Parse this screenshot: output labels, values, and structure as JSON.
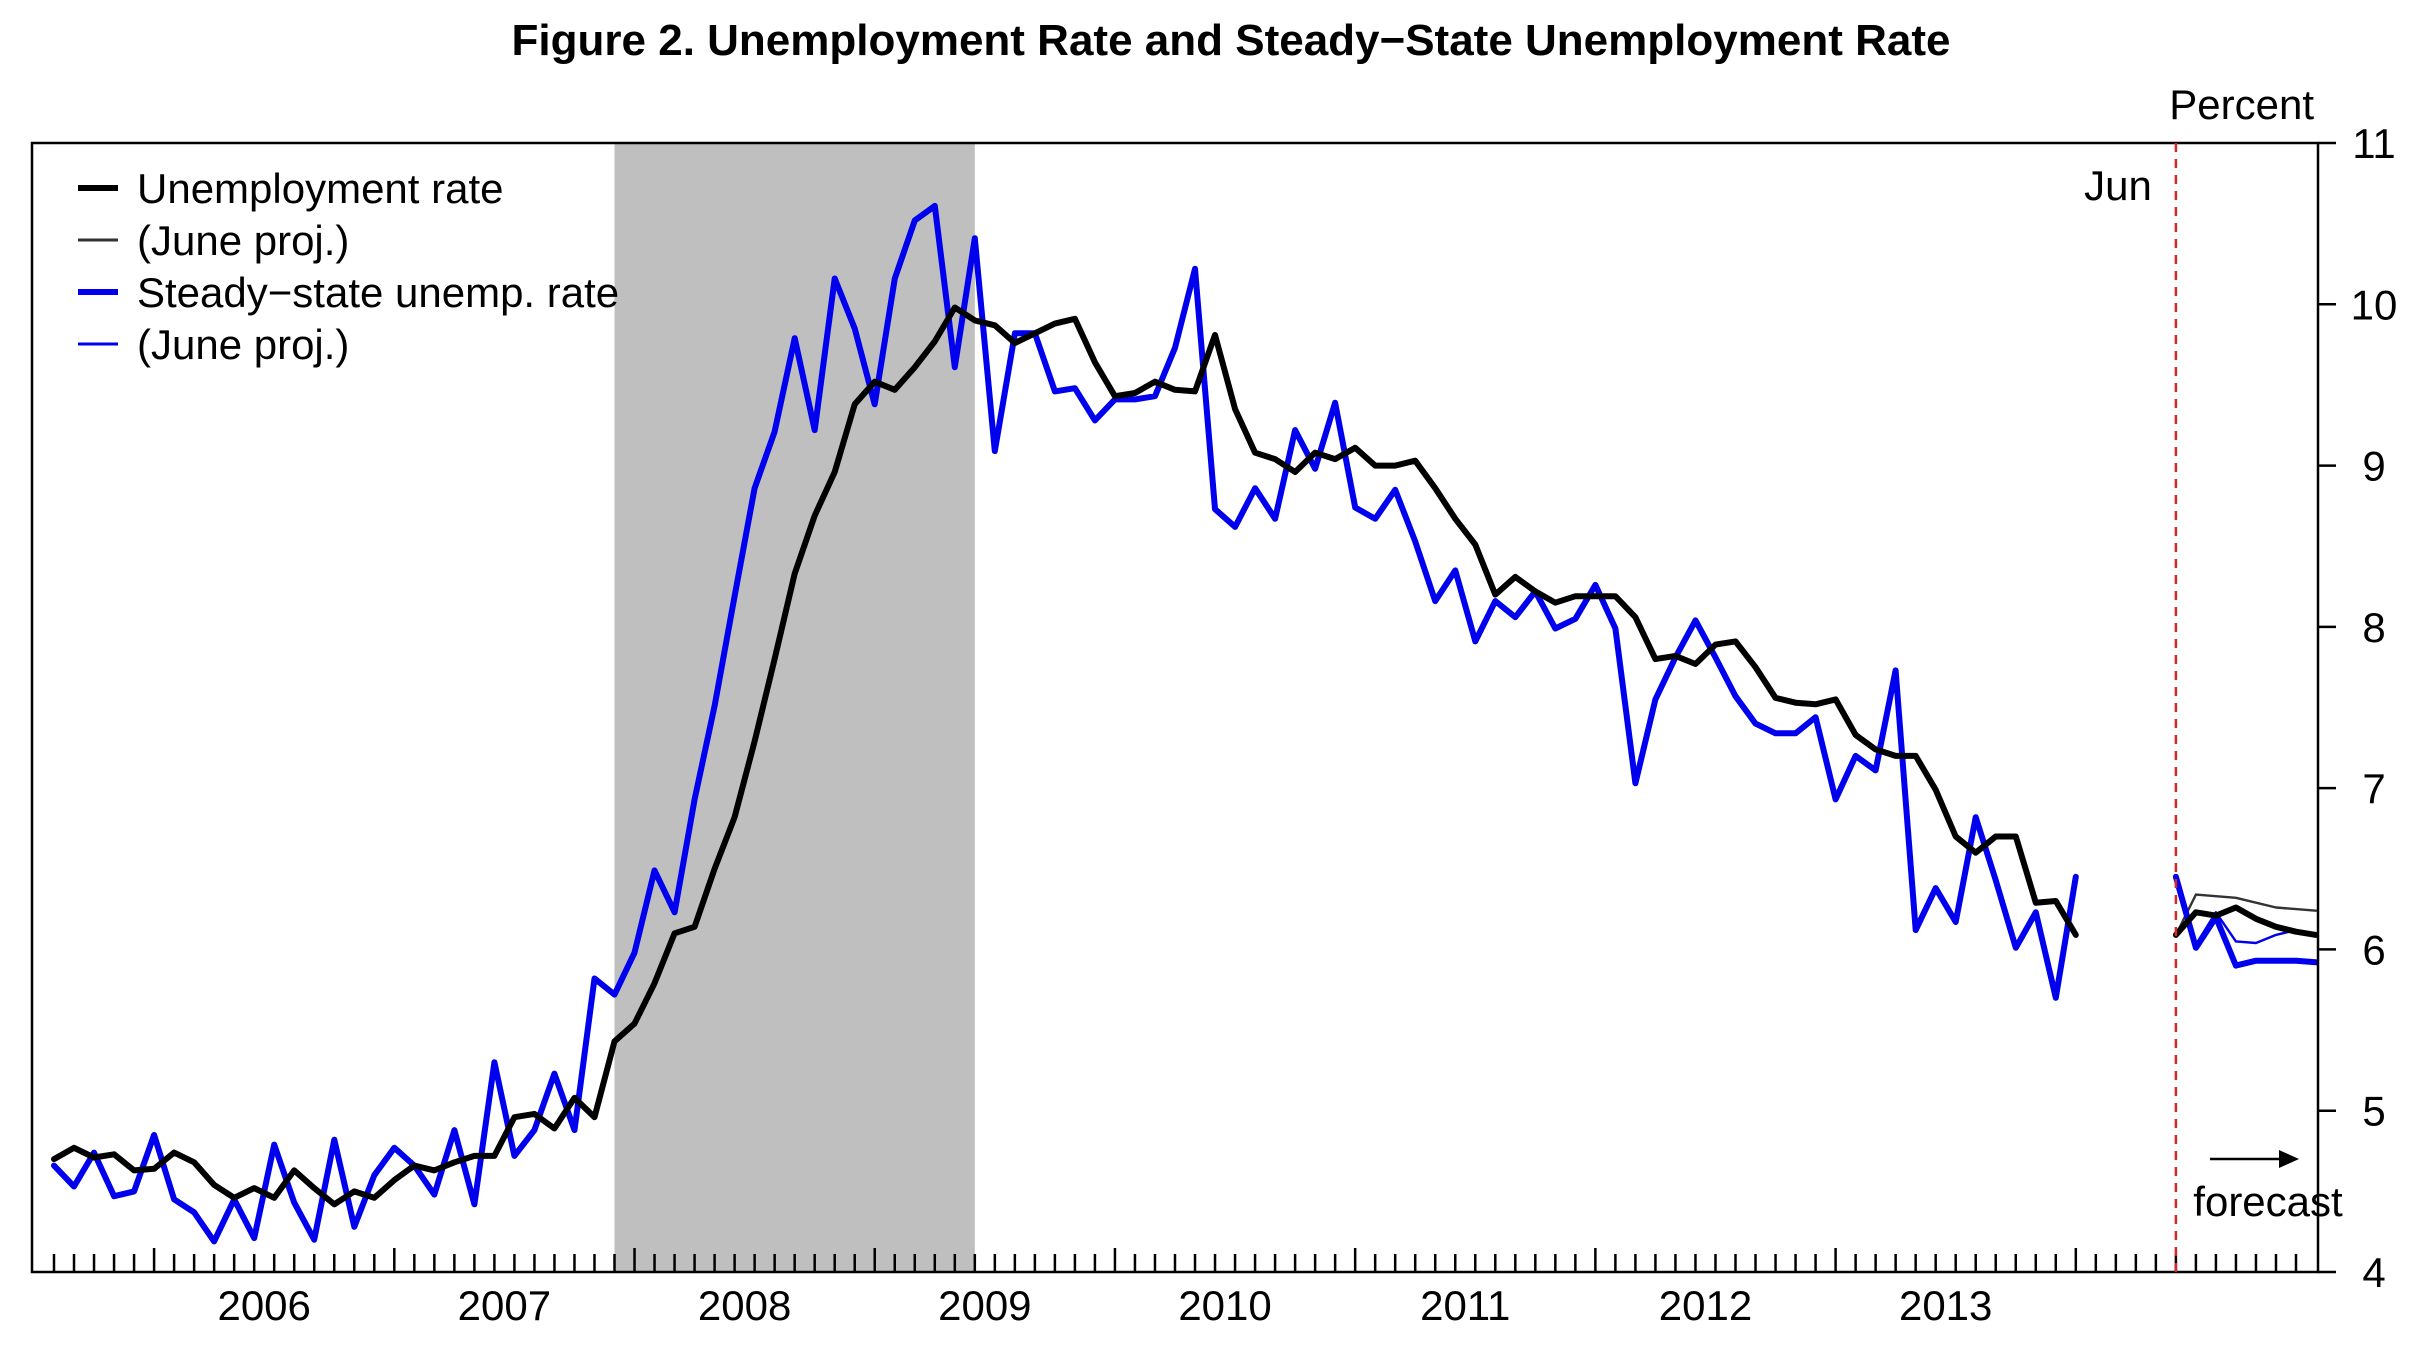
{
  "chart_data": {
    "type": "line",
    "title": "Figure 2. Unemployment Rate and Steady−State Unemployment Rate",
    "ylabel": "Percent",
    "ylim": [
      4,
      11
    ],
    "yticks": [
      "4",
      "5",
      "6",
      "7",
      "8",
      "9",
      "10",
      "11"
    ],
    "x_start": "2005-08",
    "x_end": "2014-12",
    "year_labels": [
      "2006",
      "2007",
      "2008",
      "2009",
      "2010",
      "2011",
      "2012",
      "2013"
    ],
    "recession": {
      "start": "2007-12",
      "end": "2009-06"
    },
    "vline": {
      "date": "2014-06",
      "label": "Jun",
      "color": "#d62728"
    },
    "forecast_label": "forecast",
    "legend": [
      {
        "label": "Unemployment rate",
        "color": "#000000",
        "width": 5
      },
      {
        "label": "(June proj.)",
        "color": "#333333",
        "width": 2
      },
      {
        "label": "Steady−state unemp. rate",
        "color": "#0000ee",
        "width": 5
      },
      {
        "label": "(June proj.)",
        "color": "#0000ee",
        "width": 2
      }
    ],
    "series": [
      {
        "name": "Unemployment rate",
        "start": "2005-08",
        "values": [
          4.7,
          4.77,
          4.71,
          4.73,
          4.63,
          4.64,
          4.74,
          4.68,
          4.54,
          4.46,
          4.52,
          4.46,
          4.63,
          4.52,
          4.42,
          4.5,
          4.46,
          4.57,
          4.66,
          4.63,
          4.68,
          4.72,
          4.72,
          4.96,
          4.98,
          4.89,
          5.08,
          4.96,
          5.43,
          5.54,
          5.79,
          6.1,
          6.14,
          6.5,
          6.82,
          7.29,
          7.8,
          8.33,
          8.69,
          8.96,
          9.38,
          9.52,
          9.47,
          9.61,
          9.77,
          9.98,
          9.9,
          9.87,
          9.76,
          9.82,
          9.88,
          9.91,
          9.64,
          9.43,
          9.45,
          9.52,
          9.47,
          9.46,
          9.81,
          9.35,
          9.08,
          9.04,
          8.96,
          9.08,
          9.04,
          9.11,
          9.0,
          9.0,
          9.03,
          8.86,
          8.67,
          8.51,
          8.2,
          8.31,
          8.22,
          8.15,
          8.19,
          8.19,
          8.19,
          8.06,
          7.8,
          7.82,
          7.77,
          7.89,
          7.91,
          7.75,
          7.56,
          7.53,
          7.52,
          7.55,
          7.33,
          7.24,
          7.2,
          7.2,
          6.99,
          6.7,
          6.6,
          6.7,
          6.7,
          6.29,
          6.3,
          6.09
        ]
      },
      {
        "name": "(June proj.)",
        "start": "2014-06",
        "values": [
          6.09,
          6.34,
          6.33,
          6.32,
          6.29,
          6.26,
          6.25,
          6.24
        ]
      },
      {
        "name": "Steady−state unemp. rate",
        "start": "2005-08",
        "values": [
          4.66,
          4.53,
          4.74,
          4.47,
          4.5,
          4.85,
          4.45,
          4.37,
          4.19,
          4.45,
          4.21,
          4.79,
          4.43,
          4.2,
          4.82,
          4.28,
          4.6,
          4.77,
          4.66,
          4.48,
          4.88,
          4.42,
          5.3,
          4.72,
          4.88,
          5.23,
          4.88,
          5.82,
          5.72,
          5.98,
          6.49,
          6.23,
          6.93,
          7.51,
          8.19,
          8.86,
          9.21,
          9.79,
          9.22,
          10.16,
          9.85,
          9.38,
          10.16,
          10.52,
          10.61,
          9.61,
          10.41,
          9.09,
          9.82,
          9.82,
          9.46,
          9.48,
          9.28,
          9.41,
          9.41,
          9.43,
          9.73,
          10.22,
          8.73,
          8.62,
          8.86,
          8.67,
          9.22,
          8.98,
          9.39,
          8.74,
          8.67,
          8.85,
          8.53,
          8.16,
          8.35,
          7.91,
          8.16,
          8.06,
          8.22,
          7.99,
          8.05,
          8.26,
          7.99,
          7.03,
          7.55,
          7.81,
          8.04,
          7.81,
          7.57,
          7.4,
          7.34,
          7.34,
          7.44,
          6.93,
          7.2,
          7.11,
          7.73,
          6.12,
          6.38,
          6.17,
          6.82,
          6.43,
          6.01,
          6.23,
          5.7,
          6.45
        ]
      },
      {
        "name": "(June proj.)",
        "start": "2014-06",
        "values": [
          6.45,
          6.03,
          6.23,
          6.05,
          6.04,
          6.09,
          6.12,
          6.09
        ]
      },
      {
        "name": "Unemployment rate (forecast)",
        "start": "2014-06",
        "values": [
          6.09,
          6.23,
          6.21,
          6.26,
          6.19,
          6.14,
          6.11,
          6.09
        ]
      },
      {
        "name": "Steady−state unemp. rate (forecast)",
        "start": "2014-06",
        "values": [
          6.45,
          6.01,
          6.2,
          5.9,
          5.93,
          5.93,
          5.93,
          5.92
        ]
      }
    ]
  }
}
